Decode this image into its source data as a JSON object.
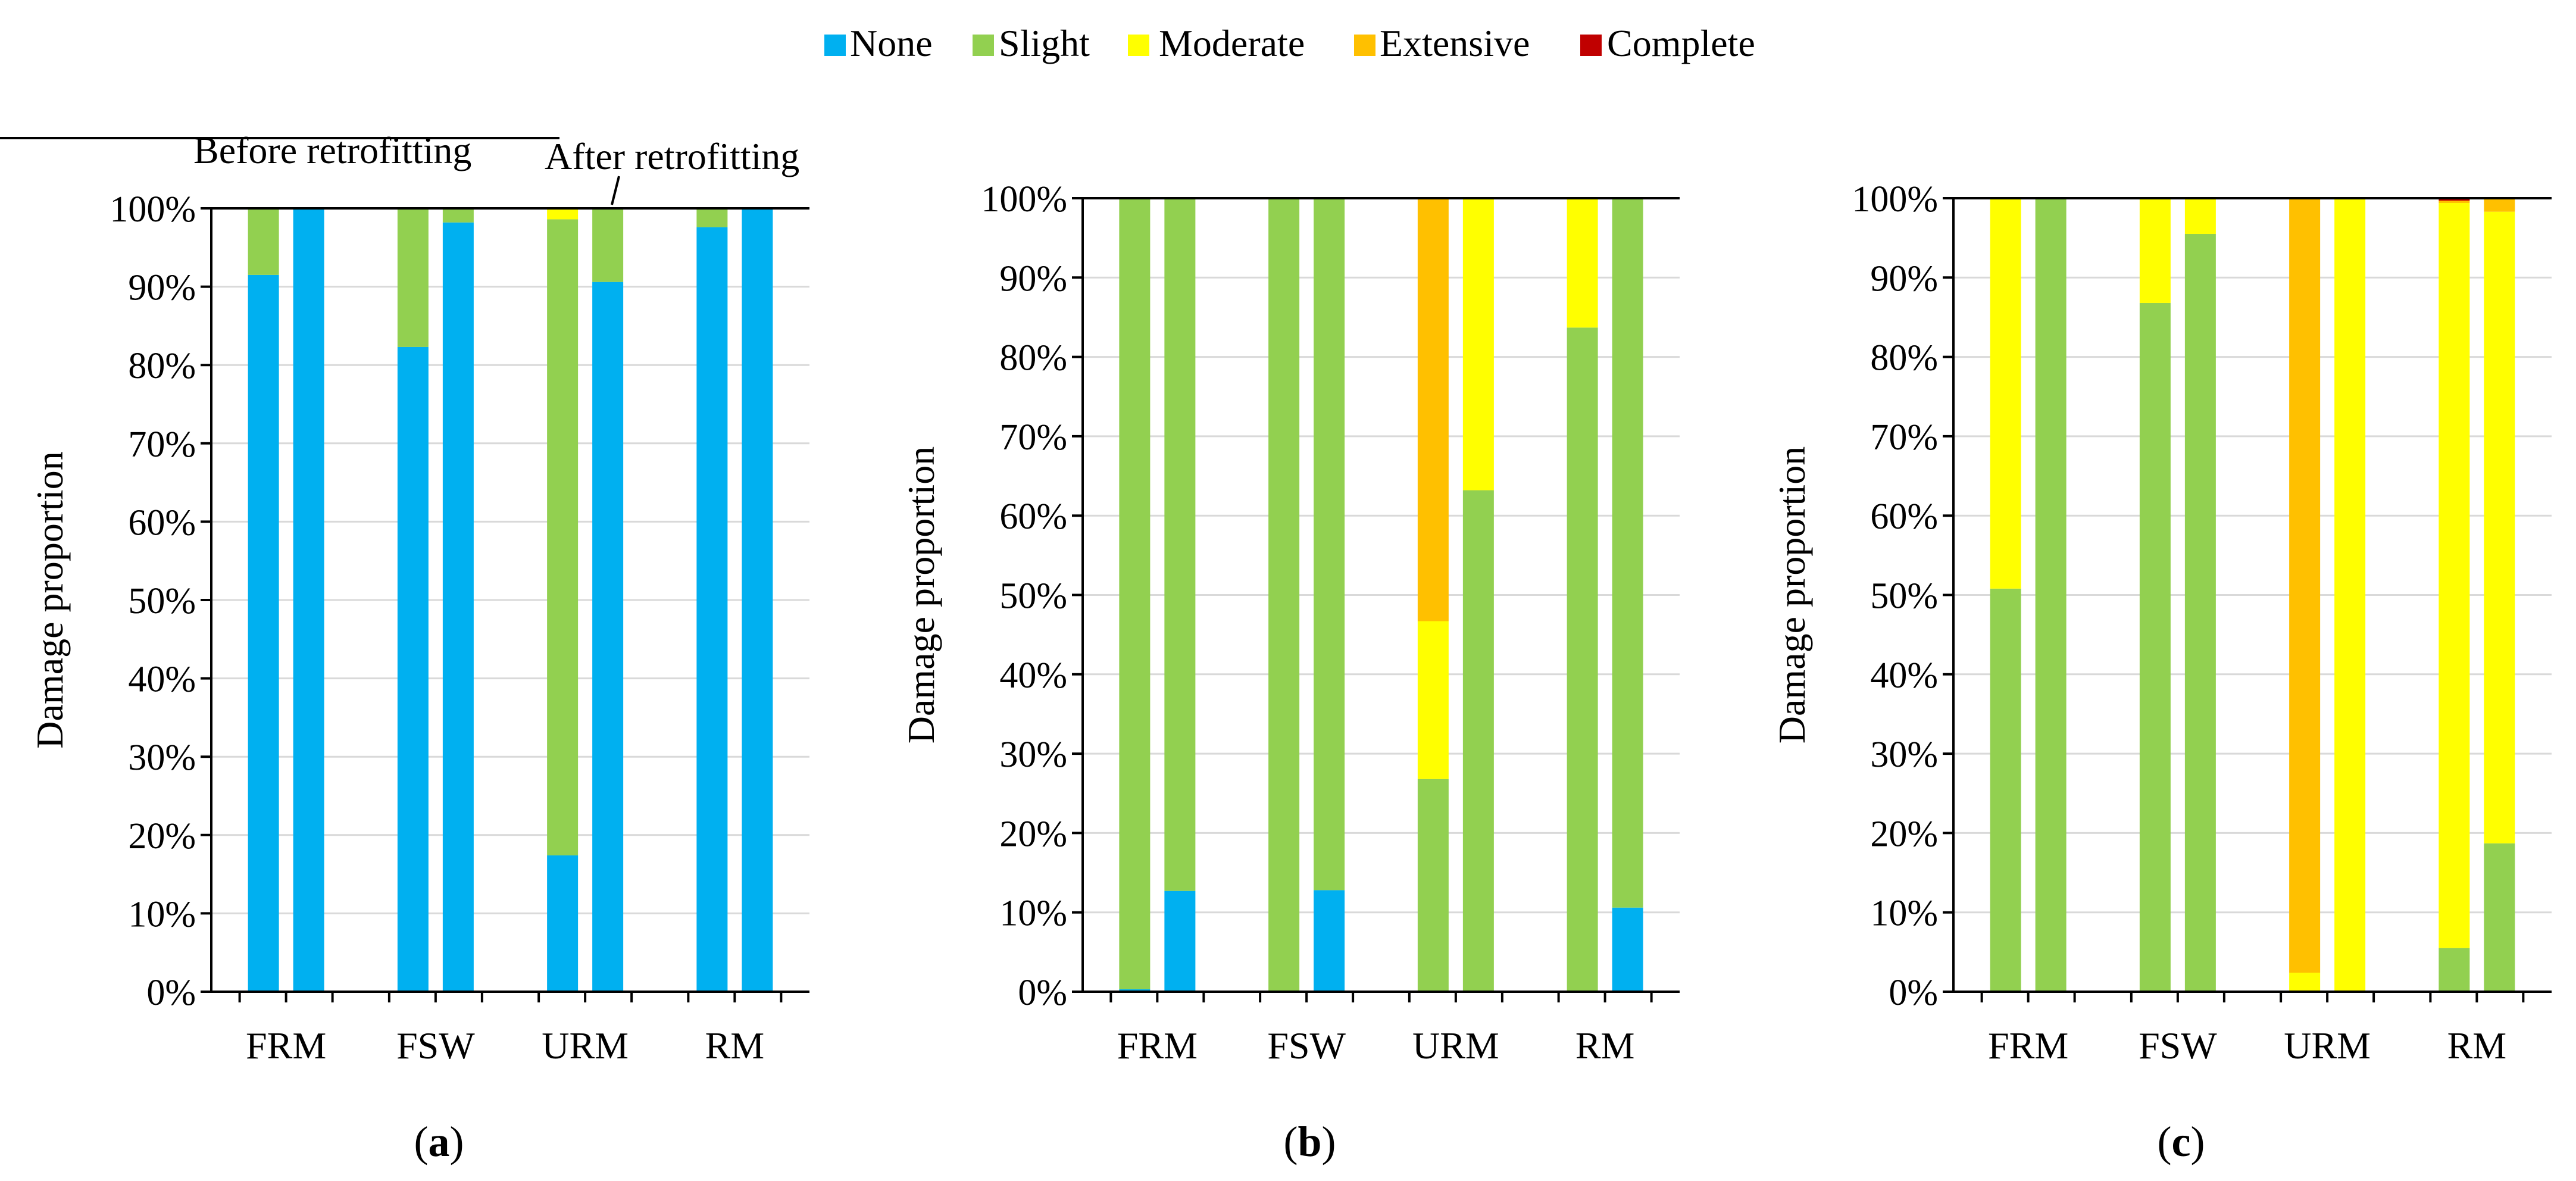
{
  "legend": [
    {
      "label": "None",
      "color": "#00B0F0"
    },
    {
      "label": "Slight",
      "color": "#92D050"
    },
    {
      "label": "Moderate",
      "color": "#FFFF00"
    },
    {
      "label": "Extensive",
      "color": "#FFC000"
    },
    {
      "label": "Complete",
      "color": "#C00000"
    }
  ],
  "annotations": {
    "before": "Before retrofitting",
    "after": "After retrofitting"
  },
  "chart_data": [
    {
      "type": "bar",
      "stacked": true,
      "panel_label": "(a)",
      "panel_letter": "a",
      "ylabel": "Damage proportion",
      "ylim": [
        0,
        100
      ],
      "yticks": [
        "0%",
        "10%",
        "20%",
        "30%",
        "40%",
        "50%",
        "60%",
        "70%",
        "80%",
        "90%",
        "100%"
      ],
      "categories": [
        "FRM",
        "FSW",
        "URM",
        "RM"
      ],
      "bars_per_category": [
        "Before retrofitting",
        "After retrofitting"
      ],
      "series": [
        {
          "name": "None",
          "values": [
            [
              91.5,
              100
            ],
            [
              82.3,
              98.2
            ],
            [
              17.4,
              90.6
            ],
            [
              97.6,
              100
            ]
          ]
        },
        {
          "name": "Slight",
          "values": [
            [
              8.5,
              0
            ],
            [
              17.7,
              1.8
            ],
            [
              81.2,
              9.4
            ],
            [
              2.4,
              0
            ]
          ]
        },
        {
          "name": "Moderate",
          "values": [
            [
              0,
              0
            ],
            [
              0,
              0
            ],
            [
              1.4,
              0
            ],
            [
              0,
              0
            ]
          ]
        },
        {
          "name": "Extensive",
          "values": [
            [
              0,
              0
            ],
            [
              0,
              0
            ],
            [
              0,
              0
            ],
            [
              0,
              0
            ]
          ]
        },
        {
          "name": "Complete",
          "values": [
            [
              0,
              0
            ],
            [
              0,
              0
            ],
            [
              0,
              0
            ],
            [
              0,
              0
            ]
          ]
        }
      ]
    },
    {
      "type": "bar",
      "stacked": true,
      "panel_label": "(b)",
      "panel_letter": "b",
      "ylabel": "Damage proportion",
      "ylim": [
        0,
        100
      ],
      "yticks": [
        "0%",
        "10%",
        "20%",
        "30%",
        "40%",
        "50%",
        "60%",
        "70%",
        "80%",
        "90%",
        "100%"
      ],
      "categories": [
        "FRM",
        "FSW",
        "URM",
        "RM"
      ],
      "bars_per_category": [
        "Before retrofitting",
        "After retrofitting"
      ],
      "series": [
        {
          "name": "None",
          "values": [
            [
              0.3,
              12.7
            ],
            [
              0,
              12.8
            ],
            [
              0,
              0
            ],
            [
              0,
              10.6
            ]
          ]
        },
        {
          "name": "Slight",
          "values": [
            [
              99.7,
              87.3
            ],
            [
              100,
              87.2
            ],
            [
              26.8,
              63.2
            ],
            [
              83.7,
              89.4
            ]
          ]
        },
        {
          "name": "Moderate",
          "values": [
            [
              0,
              0
            ],
            [
              0,
              0
            ],
            [
              19.9,
              36.8
            ],
            [
              16.3,
              0
            ]
          ]
        },
        {
          "name": "Extensive",
          "values": [
            [
              0,
              0
            ],
            [
              0,
              0
            ],
            [
              53.3,
              0
            ],
            [
              0,
              0
            ]
          ]
        },
        {
          "name": "Complete",
          "values": [
            [
              0,
              0
            ],
            [
              0,
              0
            ],
            [
              0,
              0
            ],
            [
              0,
              0
            ]
          ]
        }
      ]
    },
    {
      "type": "bar",
      "stacked": true,
      "panel_label": "(c)",
      "panel_letter": "c",
      "ylabel": "Damage proportion",
      "ylim": [
        0,
        100
      ],
      "yticks": [
        "0%",
        "10%",
        "20%",
        "30%",
        "40%",
        "50%",
        "60%",
        "70%",
        "80%",
        "90%",
        "100%"
      ],
      "categories": [
        "FRM",
        "FSW",
        "URM",
        "RM"
      ],
      "bars_per_category": [
        "Before retrofitting",
        "After retrofitting"
      ],
      "series": [
        {
          "name": "None",
          "values": [
            [
              0,
              0
            ],
            [
              0,
              0
            ],
            [
              0,
              0
            ],
            [
              0,
              0
            ]
          ]
        },
        {
          "name": "Slight",
          "values": [
            [
              50.8,
              100
            ],
            [
              86.8,
              95.5
            ],
            [
              0,
              0
            ],
            [
              5.5,
              18.7
            ]
          ]
        },
        {
          "name": "Moderate",
          "values": [
            [
              49.2,
              0
            ],
            [
              13.2,
              4.5
            ],
            [
              2.4,
              100
            ],
            [
              93.9,
              79.6
            ]
          ]
        },
        {
          "name": "Extensive",
          "values": [
            [
              0,
              0
            ],
            [
              0,
              0
            ],
            [
              97.6,
              0
            ],
            [
              0.3,
              1.7
            ]
          ]
        },
        {
          "name": "Complete",
          "values": [
            [
              0,
              0
            ],
            [
              0,
              0
            ],
            [
              0,
              0
            ],
            [
              0.3,
              0
            ]
          ]
        }
      ]
    }
  ]
}
